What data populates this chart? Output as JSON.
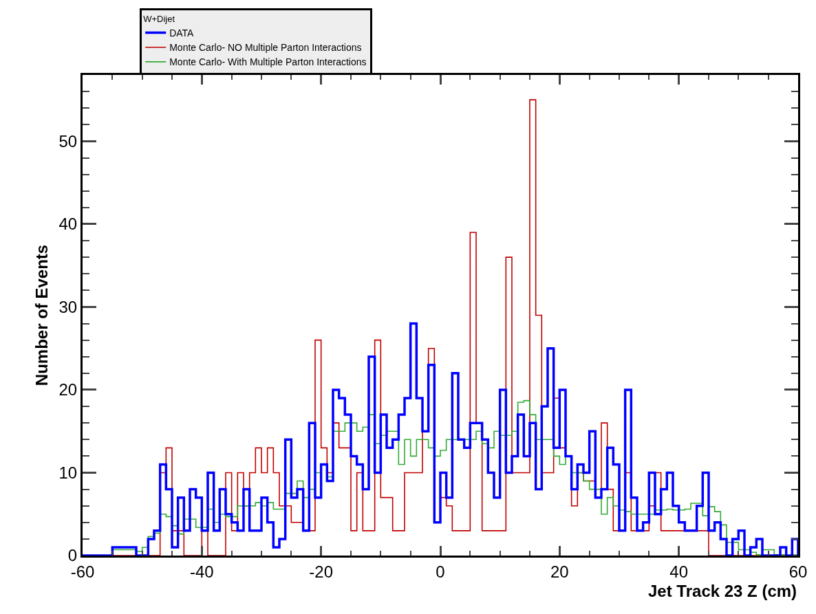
{
  "chart_data": {
    "type": "histogram",
    "xlabel": "Jet Track 23 Z (cm)",
    "ylabel": "Number of Events",
    "legend_title": "W+Dijet",
    "bins": [
      -60,
      -59,
      -58,
      -57,
      -56,
      -55,
      -54,
      -53,
      -52,
      -51,
      -50,
      -49,
      -48,
      -47,
      -46,
      -45,
      -44,
      -43,
      -42,
      -41,
      -40,
      -39,
      -38,
      -37,
      -36,
      -35,
      -34,
      -33,
      -32,
      -31,
      -30,
      -29,
      -28,
      -27,
      -26,
      -25,
      -24,
      -23,
      -22,
      -21,
      -20,
      -19,
      -18,
      -17,
      -16,
      -15,
      -14,
      -13,
      -12,
      -11,
      -10,
      -9,
      -8,
      -7,
      -6,
      -5,
      -4,
      -3,
      -2,
      -1,
      0,
      1,
      2,
      3,
      4,
      5,
      6,
      7,
      8,
      9,
      10,
      11,
      12,
      13,
      14,
      15,
      16,
      17,
      18,
      19,
      20,
      21,
      22,
      23,
      24,
      25,
      26,
      27,
      28,
      29,
      30,
      31,
      32,
      33,
      34,
      35,
      36,
      37,
      38,
      39,
      40,
      41,
      42,
      43,
      44,
      45,
      46,
      47,
      48,
      49,
      50,
      51,
      52,
      53,
      54,
      55,
      56,
      57,
      58,
      59,
      60
    ],
    "series": [
      {
        "name": "DATA",
        "color": "#0000ff",
        "values": [
          0,
          0,
          0,
          0,
          0,
          1,
          1,
          1,
          1,
          0,
          0,
          2,
          3,
          11,
          8,
          1,
          7,
          3,
          8,
          7,
          3,
          10,
          3,
          8,
          5,
          4,
          3,
          8,
          3,
          3,
          7,
          4,
          1,
          2,
          14,
          7,
          8,
          3,
          16,
          7,
          11,
          9,
          20,
          19,
          17,
          12,
          11,
          8,
          24,
          10,
          17,
          13,
          14,
          17,
          19,
          28,
          19,
          15,
          23,
          4,
          10,
          7,
          22,
          14,
          13,
          16,
          16,
          14,
          10,
          7,
          20,
          10,
          12,
          17,
          12,
          16,
          8,
          18,
          25,
          13,
          20,
          12,
          8,
          11,
          10,
          15,
          7,
          8,
          13,
          11,
          3,
          20,
          7,
          3,
          4,
          10,
          5,
          8,
          10,
          6,
          4,
          3,
          3,
          6,
          10,
          3,
          4,
          2,
          0,
          2,
          3,
          0,
          1,
          2,
          0,
          0,
          0,
          1,
          0,
          2
        ]
      },
      {
        "name": "Monte Carlo- NO Multiple Parton Interactions",
        "color": "#c00000",
        "values": [
          0,
          0,
          0,
          0,
          0,
          0,
          0,
          0,
          0,
          0,
          0,
          0,
          0,
          10,
          13,
          3,
          3,
          0,
          0,
          0,
          3,
          0,
          0,
          0,
          10,
          3,
          10,
          6,
          10,
          13,
          10,
          13,
          10,
          6,
          6,
          4,
          4,
          3,
          3,
          26,
          13,
          10,
          16,
          13,
          13,
          3,
          10,
          3,
          3,
          26,
          7,
          7,
          3,
          3,
          10,
          10,
          10,
          15,
          25,
          4,
          7,
          6,
          3,
          3,
          3,
          39,
          16,
          3,
          3,
          3,
          3,
          36,
          10,
          10,
          10,
          55,
          29,
          10,
          10,
          19,
          13,
          12,
          6,
          10,
          9,
          9,
          7,
          16,
          8,
          3,
          3,
          10,
          3,
          3,
          3,
          6,
          10,
          3,
          3,
          3,
          3,
          3,
          3,
          3,
          3,
          0,
          0,
          0,
          0,
          0,
          0,
          0,
          0,
          0,
          0,
          0,
          0,
          0,
          0,
          0
        ]
      },
      {
        "name": "Monte Carlo- With Multiple Parton Interactions",
        "color": "#33aa33",
        "values": [
          0,
          0,
          0,
          0,
          0,
          0.7,
          0.7,
          0.7,
          0.7,
          0.5,
          1,
          2.3,
          2.7,
          5,
          4.7,
          3.6,
          2.6,
          4.4,
          4.4,
          3.4,
          3.4,
          5.6,
          4,
          5,
          4.7,
          4.7,
          6,
          6,
          6,
          6.4,
          6,
          6.4,
          5.6,
          5.6,
          7.5,
          7.5,
          9,
          7,
          8,
          10,
          11,
          9.5,
          15,
          15,
          16,
          16,
          15,
          15.5,
          17,
          13.5,
          14.5,
          15,
          15,
          11,
          14,
          12,
          14,
          14,
          13,
          12,
          12.7,
          14,
          14,
          14,
          14,
          14,
          15,
          13.5,
          13,
          15,
          14.5,
          14.5,
          15,
          18.5,
          18.7,
          17,
          14,
          14,
          14,
          12,
          11,
          12,
          10,
          10,
          9,
          8,
          8,
          5,
          7,
          6,
          5.5,
          5.3,
          5,
          5,
          5,
          5,
          5.5,
          5.5,
          5.6,
          5.5,
          5.5,
          5.6,
          6.3,
          6.3,
          4.8,
          5.9,
          5.3,
          3.7,
          1.6,
          1.6,
          0.7,
          0.7,
          0.4,
          0.1,
          0.7,
          0.7,
          0.1,
          0.1,
          0,
          0.1
        ]
      }
    ],
    "xlim": [
      -60,
      60
    ],
    "ylim": [
      0,
      58
    ],
    "xticks": [
      -60,
      -40,
      -20,
      0,
      20,
      40,
      60
    ],
    "yticks": [
      0,
      10,
      20,
      30,
      40,
      50
    ],
    "legend": "top"
  }
}
